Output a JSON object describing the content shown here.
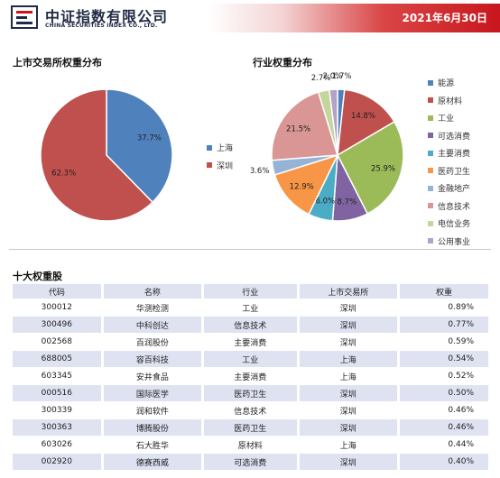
{
  "header": {
    "logo_cn": "中证指数有限公司",
    "logo_en": "CHINA SECURITIES INDEX CO., LTD.",
    "date": "2021年6月30日"
  },
  "exchange": {
    "title": "上市交易所权重分布",
    "legend": [
      "上海",
      "深圳"
    ]
  },
  "industry": {
    "title": "行业权重分布",
    "legend": [
      "能源",
      "原材料",
      "工业",
      "可选消费",
      "主要消费",
      "医药卫生",
      "金融地产",
      "信息技术",
      "电信业务",
      "公用事业"
    ]
  },
  "chart_data": [
    {
      "type": "pie",
      "labels": [
        "上海",
        "深圳"
      ],
      "values": [
        37.7,
        62.3
      ],
      "value_labels": [
        "37.7%",
        "62.3%"
      ],
      "colors": [
        "#4f81bd",
        "#c0504d"
      ],
      "title": "上市交易所权重分布",
      "legend": "right"
    },
    {
      "type": "pie",
      "labels": [
        "能源",
        "原材料",
        "工业",
        "可选消费",
        "主要消费",
        "医药卫生",
        "金融地产",
        "信息技术",
        "电信业务",
        "公用事业"
      ],
      "values": [
        1.7,
        14.8,
        25.9,
        8.7,
        6.0,
        12.9,
        3.6,
        21.5,
        2.7,
        2.0
      ],
      "value_labels": [
        "1.7%",
        "14.8%",
        "25.9%",
        "8.7%",
        "6.0%",
        "12.9%",
        "3.6%",
        "21.5%",
        "2.7%",
        "2.0%"
      ],
      "colors": [
        "#4f81bd",
        "#c0504d",
        "#9bbb59",
        "#8064a2",
        "#4bacc6",
        "#f79646",
        "#95b3d7",
        "#d99694",
        "#c3d69b",
        "#b3a2c7"
      ],
      "title": "行业权重分布",
      "legend": "right"
    }
  ],
  "top10": {
    "title": "十大权重股",
    "columns": [
      "代码",
      "名称",
      "行业",
      "上市交易所",
      "权重"
    ],
    "rows": [
      [
        "300012",
        "华测检测",
        "工业",
        "深圳",
        "0.89%"
      ],
      [
        "300496",
        "中科创达",
        "信息技术",
        "深圳",
        "0.77%"
      ],
      [
        "002568",
        "百润股份",
        "主要消费",
        "深圳",
        "0.59%"
      ],
      [
        "688005",
        "容百科技",
        "工业",
        "上海",
        "0.54%"
      ],
      [
        "603345",
        "安井食品",
        "主要消费",
        "上海",
        "0.52%"
      ],
      [
        "000516",
        "国际医学",
        "医药卫生",
        "深圳",
        "0.50%"
      ],
      [
        "300339",
        "润和软件",
        "信息技术",
        "深圳",
        "0.46%"
      ],
      [
        "300363",
        "博腾股份",
        "医药卫生",
        "深圳",
        "0.46%"
      ],
      [
        "603026",
        "石大胜华",
        "原材料",
        "上海",
        "0.44%"
      ],
      [
        "002920",
        "德赛西威",
        "可选消费",
        "深圳",
        "0.40%"
      ]
    ]
  }
}
